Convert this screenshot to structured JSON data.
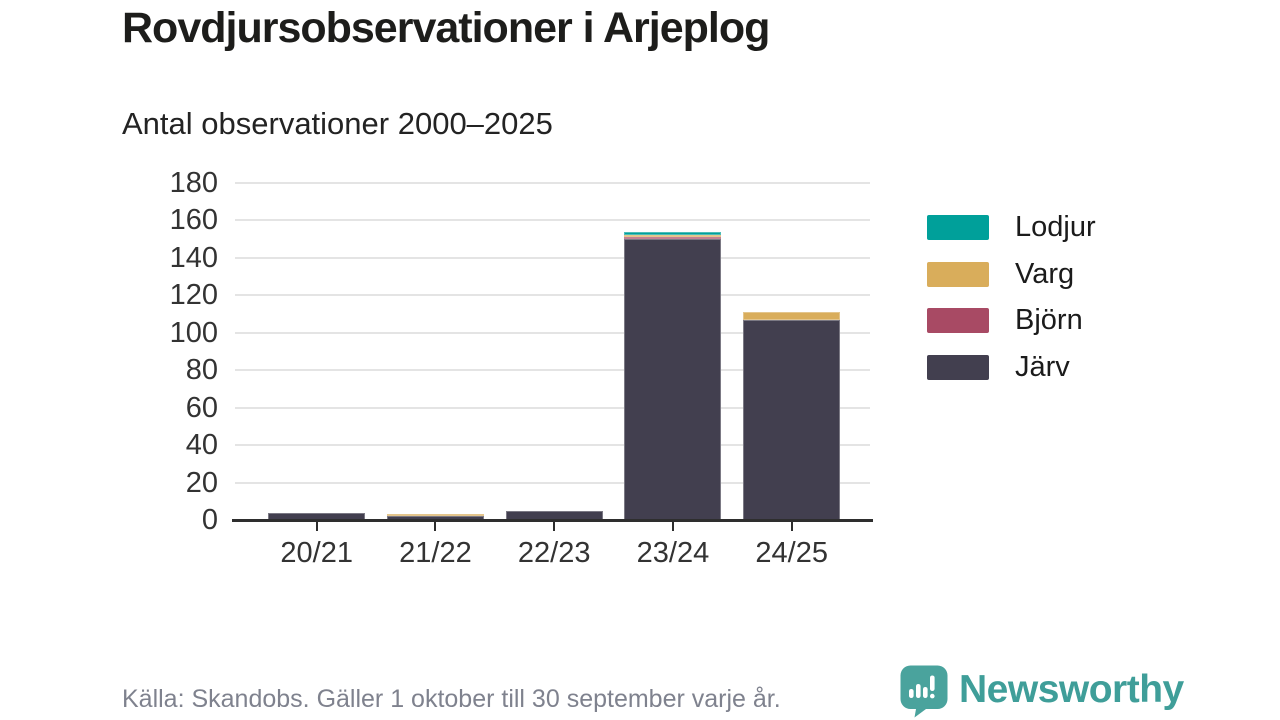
{
  "header": {
    "title": "Rovdjursobservationer i Arjeplog",
    "subtitle": "Antal observationer 2000–2025"
  },
  "chart_data": {
    "type": "bar",
    "stacked": true,
    "title": "Rovdjursobservationer i Arjeplog",
    "subtitle": "Antal observationer 2000–2025",
    "categories": [
      "20/21",
      "21/22",
      "22/23",
      "23/24",
      "24/25"
    ],
    "series": [
      {
        "name": "Lodjur",
        "color": "#00a09a",
        "values": [
          0,
          0,
          0,
          2,
          0
        ]
      },
      {
        "name": "Varg",
        "color": "#d9ad5b",
        "values": [
          0,
          1,
          0,
          1,
          4
        ]
      },
      {
        "name": "Björn",
        "color": "#a84a64",
        "values": [
          0,
          0,
          0,
          1,
          0
        ]
      },
      {
        "name": "Järv",
        "color": "#423f4f",
        "values": [
          4,
          2,
          5,
          150,
          107
        ]
      }
    ],
    "totals": [
      4,
      3,
      5,
      154,
      111
    ],
    "stack_order_bottom_to_top": [
      "Järv",
      "Björn",
      "Varg",
      "Lodjur"
    ],
    "ylim": [
      0,
      180
    ],
    "ytick_step": 20,
    "yticks": [
      0,
      20,
      40,
      60,
      80,
      100,
      120,
      140,
      160,
      180
    ],
    "xlabel": "",
    "ylabel": "",
    "grid": true,
    "legend_position": "right"
  },
  "footer": {
    "source": "Källa: Skandobs. Gäller 1 oktober till 30 september varje år.",
    "brand": "Newsworthy"
  },
  "colors": {
    "background": "#ffffff",
    "title": "#1d1d1b",
    "subtitle": "#232323",
    "axis": "#2e2e2e",
    "tick_labels": "#333333",
    "gridline": "#e4e4e4",
    "footer_text": "#7f828e",
    "brand_teal": "#3f9e99",
    "logo_bubble": "#4aa39d"
  }
}
